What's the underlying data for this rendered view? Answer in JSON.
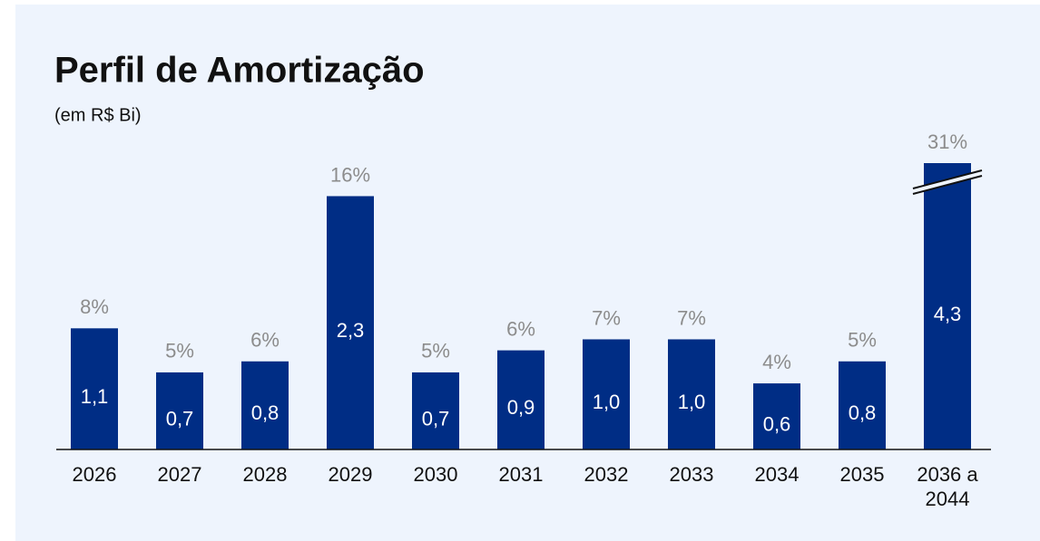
{
  "chart_data": {
    "type": "bar",
    "title": "Perfil de Amortização",
    "subtitle": "(em R$ Bi)",
    "categories": [
      "2026",
      "2027",
      "2028",
      "2029",
      "2030",
      "2031",
      "2032",
      "2033",
      "2034",
      "2035",
      "2036 a 2044"
    ],
    "values": [
      1.1,
      0.7,
      0.8,
      2.3,
      0.7,
      0.9,
      1.0,
      1.0,
      0.6,
      0.8,
      4.3
    ],
    "value_labels": [
      "1,1",
      "0,7",
      "0,8",
      "2,3",
      "0,7",
      "0,9",
      "1,0",
      "1,0",
      "0,6",
      "0,8",
      "4,3"
    ],
    "shares": [
      8,
      5,
      6,
      16,
      5,
      6,
      7,
      7,
      4,
      5,
      31
    ],
    "share_labels": [
      "8%",
      "5%",
      "6%",
      "16%",
      "5%",
      "6%",
      "7%",
      "7%",
      "4%",
      "5%",
      "31%"
    ],
    "color": "#002d85",
    "ylim": [
      0,
      2.6
    ],
    "axis_break": true
  }
}
